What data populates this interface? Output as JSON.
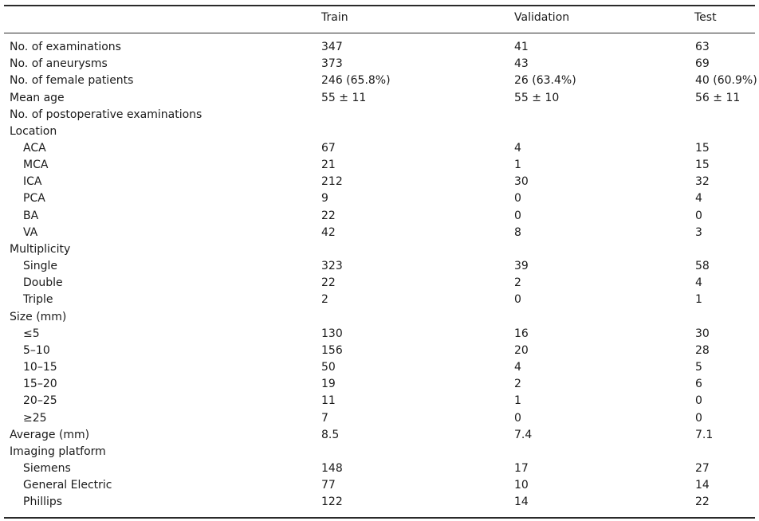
{
  "header": {
    "col0": "",
    "col1": "Train",
    "col2": "Validation",
    "col3": "Test"
  },
  "rows": [
    {
      "label": "No. of examinations",
      "indent": false,
      "train": "347",
      "validation": "41",
      "test": "63"
    },
    {
      "label": "No. of aneurysms",
      "indent": false,
      "train": "373",
      "validation": "43",
      "test": "69"
    },
    {
      "label": "No. of female patients",
      "indent": false,
      "train": "246 (65.8%)",
      "validation": "26 (63.4%)",
      "test": "40 (60.9%)"
    },
    {
      "label": "Mean age",
      "indent": false,
      "train": "55 ± 11",
      "validation": "55 ± 10",
      "test": "56 ± 11"
    },
    {
      "label": "No. of postoperative examinations",
      "indent": false,
      "train": "",
      "validation": "",
      "test": ""
    },
    {
      "label": "Location",
      "indent": false,
      "train": "",
      "validation": "",
      "test": ""
    },
    {
      "label": "ACA",
      "indent": true,
      "train": "67",
      "validation": "4",
      "test": "15"
    },
    {
      "label": "MCA",
      "indent": true,
      "train": "21",
      "validation": "1",
      "test": "15"
    },
    {
      "label": "ICA",
      "indent": true,
      "train": "212",
      "validation": "30",
      "test": "32"
    },
    {
      "label": "PCA",
      "indent": true,
      "train": "9",
      "validation": "0",
      "test": "4"
    },
    {
      "label": "BA",
      "indent": true,
      "train": "22",
      "validation": "0",
      "test": "0"
    },
    {
      "label": "VA",
      "indent": true,
      "train": "42",
      "validation": "8",
      "test": "3"
    },
    {
      "label": "Multiplicity",
      "indent": false,
      "train": "",
      "validation": "",
      "test": ""
    },
    {
      "label": "Single",
      "indent": true,
      "train": "323",
      "validation": "39",
      "test": "58"
    },
    {
      "label": "Double",
      "indent": true,
      "train": "22",
      "validation": "2",
      "test": "4"
    },
    {
      "label": "Triple",
      "indent": true,
      "train": "2",
      "validation": "0",
      "test": "1"
    },
    {
      "label": "Size (mm)",
      "indent": false,
      "train": "",
      "validation": "",
      "test": ""
    },
    {
      "label": "≤5",
      "indent": true,
      "train": "130",
      "validation": "16",
      "test": "30"
    },
    {
      "label": "5–10",
      "indent": true,
      "train": "156",
      "validation": "20",
      "test": "28"
    },
    {
      "label": "10–15",
      "indent": true,
      "train": "50",
      "validation": "4",
      "test": "5"
    },
    {
      "label": "15–20",
      "indent": true,
      "train": "19",
      "validation": "2",
      "test": "6"
    },
    {
      "label": "20–25",
      "indent": true,
      "train": "11",
      "validation": "1",
      "test": "0"
    },
    {
      "label": "≥25",
      "indent": true,
      "train": "7",
      "validation": "0",
      "test": "0"
    },
    {
      "label": "Average (mm)",
      "indent": false,
      "train": "8.5",
      "validation": "7.4",
      "test": "7.1"
    },
    {
      "label": "Imaging platform",
      "indent": false,
      "train": "",
      "validation": "",
      "test": ""
    },
    {
      "label": "Siemens",
      "indent": true,
      "train": "148",
      "validation": "17",
      "test": "27"
    },
    {
      "label": "General Electric",
      "indent": true,
      "train": "77",
      "validation": "10",
      "test": "14"
    },
    {
      "label": "Phillips",
      "indent": true,
      "train": "122",
      "validation": "14",
      "test": "22"
    }
  ]
}
